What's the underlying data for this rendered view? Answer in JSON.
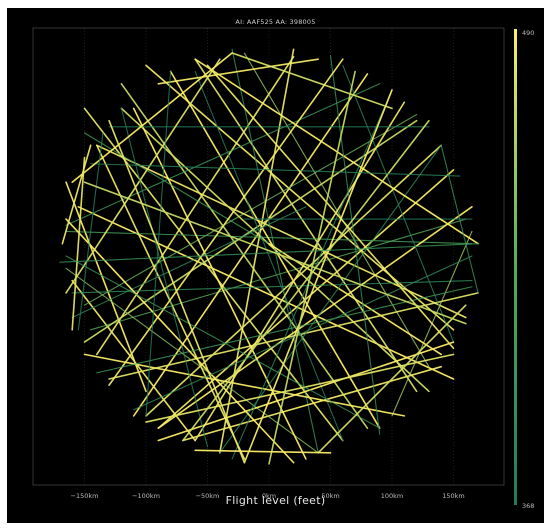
{
  "colors": {
    "background": "#000000",
    "frame_border": "#ffffff",
    "low": "#1f7a5e",
    "mid": "#4fae5b",
    "high": "#ffee66",
    "tick_text": "#bdbdbd",
    "grid": "#4a4a4a"
  },
  "header": {
    "title": "AI: AAF525    AA: 398005"
  },
  "chart_data": {
    "type": "line",
    "title": "AI: AAF525    AA: 398005",
    "xlabel": "Flight level (feet)",
    "xticks": [
      "−150km",
      "−100km",
      "−50km",
      "0km",
      "50km",
      "100km",
      "150km"
    ],
    "xtick_values": [
      -150,
      -100,
      -50,
      0,
      50,
      100,
      150
    ],
    "xlim": [
      -185,
      185
    ],
    "ylim": [
      -185,
      185
    ],
    "grid": true,
    "colorbar": {
      "min_label": "368",
      "max_label": "490",
      "min": 368,
      "max": 490,
      "colormap": "green-to-yellow",
      "placement": "right"
    },
    "coverage": {
      "shape": "circle",
      "center_km": [
        0,
        0
      ],
      "radius_km": 170
    },
    "series": [
      {
        "x": [
          -160,
          -60
        ],
        "y": [
          -20,
          -150
        ],
        "level": 485
      },
      {
        "x": [
          -150,
          60
        ],
        "y": [
          120,
          -150
        ],
        "level": 480
      },
      {
        "x": [
          -120,
          80
        ],
        "y": [
          140,
          -140
        ],
        "level": 470
      },
      {
        "x": [
          -155,
          150
        ],
        "y": [
          40,
          -100
        ],
        "level": 490
      },
      {
        "x": [
          -165,
          -100
        ],
        "y": [
          60,
          -110
        ],
        "level": 488
      },
      {
        "x": [
          -145,
          160
        ],
        "y": [
          -60,
          30
        ],
        "level": 430
      },
      {
        "x": [
          -100,
          150
        ],
        "y": [
          155,
          -60
        ],
        "level": 486
      },
      {
        "x": [
          -60,
          120
        ],
        "y": [
          160,
          -110
        ],
        "level": 478
      },
      {
        "x": [
          -20,
          130
        ],
        "y": [
          165,
          -90
        ],
        "level": 455
      },
      {
        "x": [
          20,
          -140
        ],
        "y": [
          162,
          -80
        ],
        "level": 482
      },
      {
        "x": [
          80,
          -110
        ],
        "y": [
          148,
          -130
        ],
        "level": 489
      },
      {
        "x": [
          120,
          -150
        ],
        "y": [
          115,
          -40
        ],
        "level": 440
      },
      {
        "x": [
          150,
          -90
        ],
        "y": [
          70,
          -140
        ],
        "level": 487
      },
      {
        "x": [
          165,
          -165
        ],
        "y": [
          10,
          20
        ],
        "level": 420
      },
      {
        "x": [
          160,
          -140
        ],
        "y": [
          -50,
          90
        ],
        "level": 484
      },
      {
        "x": [
          130,
          -120
        ],
        "y": [
          -110,
          120
        ],
        "level": 476
      },
      {
        "x": [
          90,
          -80
        ],
        "y": [
          -140,
          150
        ],
        "level": 490
      },
      {
        "x": [
          40,
          -30
        ],
        "y": [
          -160,
          168
        ],
        "level": 400
      },
      {
        "x": [
          -40,
          20
        ],
        "y": [
          -160,
          168
        ],
        "level": 483
      },
      {
        "x": [
          -160,
          165
        ],
        "y": [
          -30,
          -20
        ],
        "level": 395
      },
      {
        "x": [
          -130,
          170
        ],
        "y": [
          -100,
          -30
        ],
        "level": 479
      },
      {
        "x": [
          -90,
          165
        ],
        "y": [
          -140,
          40
        ],
        "level": 488
      },
      {
        "x": [
          -165,
          90
        ],
        "y": [
          25,
          140
        ],
        "level": 410
      },
      {
        "x": [
          -150,
          120
        ],
        "y": [
          -70,
          110
        ],
        "level": 470
      },
      {
        "x": [
          -70,
          140
        ],
        "y": [
          -150,
          -90
        ],
        "level": 485
      },
      {
        "x": [
          -165,
          40
        ],
        "y": [
          -10,
          -160
        ],
        "level": 450
      },
      {
        "x": [
          -110,
          30
        ],
        "y": [
          120,
          -165
        ],
        "level": 490
      },
      {
        "x": [
          60,
          150
        ],
        "y": [
          155,
          -70
        ],
        "level": 380
      },
      {
        "x": [
          -30,
          100
        ],
        "y": [
          165,
          120
        ],
        "level": 475
      },
      {
        "x": [
          -140,
          -20
        ],
        "y": [
          90,
          -165
        ],
        "level": 483
      },
      {
        "x": [
          100,
          165
        ],
        "y": [
          -130,
          20
        ],
        "level": 460
      },
      {
        "x": [
          -160,
          30
        ],
        "y": [
          -50,
          40
        ],
        "level": 389
      },
      {
        "x": [
          -20,
          165
        ],
        "y": [
          30,
          30
        ],
        "level": 372
      },
      {
        "x": [
          -150,
          0
        ],
        "y": [
          100,
          10
        ],
        "level": 415
      },
      {
        "x": [
          0,
          140
        ],
        "y": [
          10,
          -80
        ],
        "level": 490
      },
      {
        "x": [
          -100,
          140
        ],
        "y": [
          -130,
          90
        ],
        "level": 481
      },
      {
        "x": [
          -60,
          60
        ],
        "y": [
          150,
          -150
        ],
        "level": 374
      },
      {
        "x": [
          110,
          -60
        ],
        "y": [
          125,
          -150
        ],
        "level": 484
      },
      {
        "x": [
          -130,
          130
        ],
        "y": [
          105,
          105
        ],
        "level": 378
      },
      {
        "x": [
          -90,
          150
        ],
        "y": [
          -150,
          -70
        ],
        "level": 490
      },
      {
        "x": [
          140,
          -40
        ],
        "y": [
          90,
          -160
        ],
        "level": 390
      },
      {
        "x": [
          -150,
          110
        ],
        "y": [
          -80,
          -130
        ],
        "level": 487
      },
      {
        "x": [
          -165,
          -40
        ],
        "y": [
          -30,
          160
        ],
        "level": 478
      },
      {
        "x": [
          -120,
          -50
        ],
        "y": [
          120,
          -155
        ],
        "level": 376
      },
      {
        "x": [
          -60,
          170
        ],
        "y": [
          160,
          10
        ],
        "level": 489
      },
      {
        "x": [
          50,
          90
        ],
        "y": [
          163,
          -145
        ],
        "level": 398
      },
      {
        "x": [
          -130,
          60
        ],
        "y": [
          -105,
          160
        ],
        "level": 486
      },
      {
        "x": [
          -30,
          100
        ],
        "y": [
          -165,
          135
        ],
        "level": 385
      },
      {
        "x": [
          150,
          -100
        ],
        "y": [
          -80,
          -135
        ],
        "level": 480
      },
      {
        "x": [
          -140,
          165
        ],
        "y": [
          -95,
          -25
        ],
        "level": 412
      },
      {
        "x": [
          20,
          -165
        ],
        "y": [
          -168,
          30
        ],
        "level": 490
      },
      {
        "x": [
          -165,
          90
        ],
        "y": [
          0,
          -140
        ],
        "level": 406
      },
      {
        "x": [
          -70,
          130
        ],
        "y": [
          -150,
          110
        ],
        "level": 472
      },
      {
        "x": [
          100,
          -20
        ],
        "y": [
          135,
          -168
        ],
        "level": 488
      },
      {
        "x": [
          -145,
          155
        ],
        "y": [
          75,
          65
        ],
        "level": 382
      },
      {
        "x": [
          -30,
          -160
        ],
        "y": [
          165,
          60
        ],
        "level": 490
      },
      {
        "x": [
          -160,
          -150
        ],
        "y": [
          -60,
          80
        ],
        "level": 481
      },
      {
        "x": [
          -168,
          -145
        ],
        "y": [
          10,
          90
        ],
        "level": 485
      },
      {
        "x": [
          -155,
          -135
        ],
        "y": [
          -60,
          100
        ],
        "level": 378
      },
      {
        "x": [
          40,
          160
        ],
        "y": [
          -160,
          -40
        ],
        "level": 477
      },
      {
        "x": [
          -110,
          165
        ],
        "y": [
          -125,
          0
        ],
        "level": 393
      },
      {
        "x": [
          -50,
          150
        ],
        "y": [
          155,
          -75
        ],
        "level": 484
      },
      {
        "x": [
          70,
          0
        ],
        "y": [
          150,
          -169
        ],
        "level": 470
      },
      {
        "x": [
          -170,
          170
        ],
        "y": [
          -5,
          10
        ],
        "level": 403
      },
      {
        "x": [
          -90,
          40
        ],
        "y": [
          140,
          160
        ],
        "level": 486
      },
      {
        "x": [
          -80,
          -100
        ],
        "y": [
          150,
          -130
        ],
        "level": 375
      },
      {
        "x": [
          -60,
          50
        ],
        "y": [
          -158,
          -160
        ],
        "level": 489
      },
      {
        "x": [
          140,
          170
        ],
        "y": [
          90,
          -30
        ],
        "level": 397
      },
      {
        "x": [
          -20,
          -130
        ],
        "y": [
          -168,
          110
        ],
        "level": 483
      },
      {
        "x": [
          -150,
          160
        ],
        "y": [
          60,
          -55
        ],
        "level": 471
      }
    ]
  }
}
